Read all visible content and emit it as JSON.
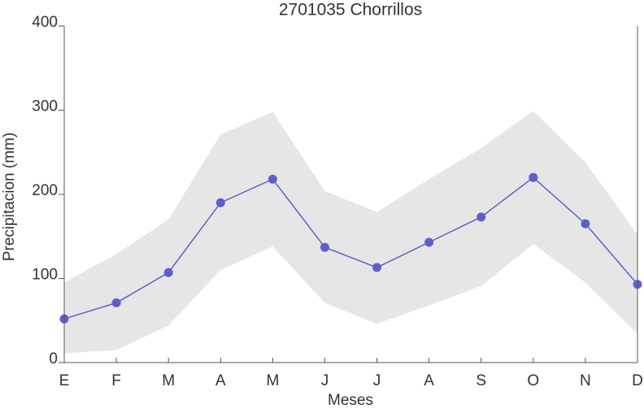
{
  "chart_data": {
    "type": "line-band",
    "title": "2701035 Chorrillos",
    "x_label": "Meses",
    "y_label": "Precipitacion (mm)",
    "categories": [
      "E",
      "F",
      "M",
      "A",
      "M",
      "J",
      "J",
      "A",
      "S",
      "O",
      "N",
      "D"
    ],
    "values": [
      52,
      71,
      107,
      190,
      218,
      137,
      113,
      143,
      173,
      220,
      165,
      93
    ],
    "upper": [
      95,
      129,
      170,
      271,
      298,
      204,
      179,
      218,
      255,
      299,
      238,
      152
    ],
    "lower": [
      11,
      15,
      44,
      110,
      138,
      71,
      46,
      68,
      91,
      141,
      95,
      34
    ],
    "color": "#5f5fc9",
    "band_color": "#e6e6e6",
    "ylim": [
      0,
      400
    ],
    "yticks": [
      0,
      100,
      200,
      300,
      400
    ]
  }
}
